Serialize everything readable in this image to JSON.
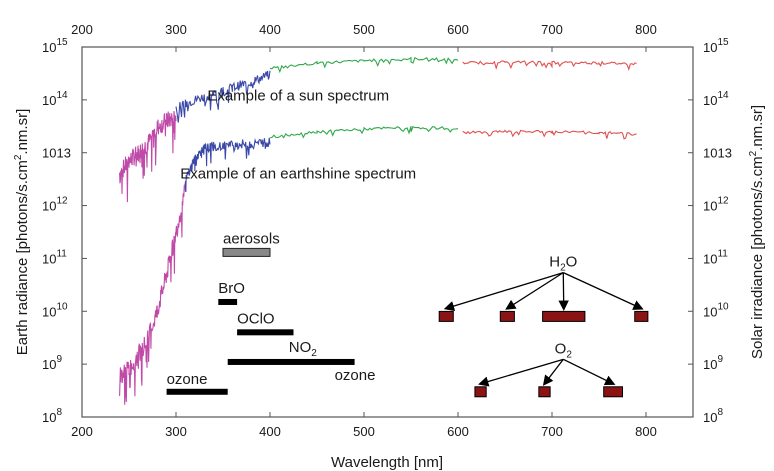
{
  "chart_data": {
    "type": "line",
    "title": "",
    "xlabel": "Wavelength [nm]",
    "ylabel_left": "Earth radiance [photons/s.cm",
    "ylabel_left_sup": "2",
    "ylabel_left_tail": ".nm.sr]",
    "ylabel_right": "Solar irradiance [photons/s.cm",
    "ylabel_right_sup": "2",
    "ylabel_right_tail": ".nm.sr]",
    "xlim": [
      200,
      850
    ],
    "ylim": [
      100000000,
      1000000000000000
    ],
    "yscale": "log",
    "x_ticks": [
      "200",
      "300",
      "400",
      "500",
      "600",
      "700",
      "800"
    ],
    "y_ticks_left": [
      {
        "base": "10",
        "exp": "8"
      },
      {
        "base": "10",
        "exp": "9"
      },
      {
        "base": "10",
        "exp": "10"
      },
      {
        "base": "10",
        "exp": "11"
      },
      {
        "base": "10",
        "exp": "12"
      },
      {
        "base": "1013",
        "exp": ""
      },
      {
        "base": "10",
        "exp": "14"
      },
      {
        "base": "10",
        "exp": "15"
      }
    ],
    "y_ticks_right": [
      {
        "base": "10",
        "exp": "8"
      },
      {
        "base": "10",
        "exp": "9"
      },
      {
        "base": "10",
        "exp": "10"
      },
      {
        "base": "10",
        "exp": "11"
      },
      {
        "base": "10",
        "exp": "12"
      },
      {
        "base": "1013",
        "exp": ""
      },
      {
        "base": "10",
        "exp": "14"
      },
      {
        "base": "10",
        "exp": "15"
      }
    ],
    "series_colors": [
      "#c04aa8",
      "#3a48a8",
      "#2ea84a",
      "#e05050"
    ],
    "series": [
      {
        "segment": "sun",
        "color_index": 0,
        "x": [
          240,
          250,
          260,
          270,
          280,
          290,
          300
        ],
        "y": [
          4000000000000.0,
          7000000000000.0,
          10000000000000.0,
          15000000000000.0,
          30000000000000.0,
          40000000000000.0,
          50000000000000.0
        ]
      },
      {
        "segment": "sun",
        "color_index": 1,
        "x": [
          300,
          320,
          340,
          360,
          380,
          400
        ],
        "y": [
          70000000000000.0,
          100000000000000.0,
          130000000000000.0,
          170000000000000.0,
          220000000000000.0,
          300000000000000.0
        ]
      },
      {
        "segment": "sun",
        "color_index": 2,
        "x": [
          400,
          450,
          500,
          550,
          600
        ],
        "y": [
          400000000000000.0,
          500000000000000.0,
          550000000000000.0,
          600000000000000.0,
          580000000000000.0
        ]
      },
      {
        "segment": "sun",
        "color_index": 3,
        "x": [
          605,
          650,
          700,
          750,
          790
        ],
        "y": [
          500000000000000.0,
          520000000000000.0,
          510000000000000.0,
          500000000000000.0,
          480000000000000.0
        ]
      },
      {
        "segment": "earthshine",
        "color_index": 0,
        "x": [
          240,
          250,
          260,
          270,
          280,
          290,
          300,
          310
        ],
        "y": [
          600000000.0,
          800000000.0,
          1500000000.0,
          3000000000.0,
          10000000000.0,
          50000000000.0,
          300000000000.0,
          2000000000000.0
        ]
      },
      {
        "segment": "earthshine",
        "color_index": 1,
        "x": [
          310,
          320,
          330,
          340,
          360,
          380,
          400
        ],
        "y": [
          3000000000000.0,
          8000000000000.0,
          12000000000000.0,
          13000000000000.0,
          14000000000000.0,
          15000000000000.0,
          16000000000000.0
        ]
      },
      {
        "segment": "earthshine",
        "color_index": 2,
        "x": [
          400,
          450,
          500,
          550,
          600
        ],
        "y": [
          20000000000000.0,
          25000000000000.0,
          28000000000000.0,
          30000000000000.0,
          29000000000000.0
        ]
      },
      {
        "segment": "earthshine",
        "color_index": 3,
        "x": [
          605,
          650,
          700,
          750,
          790
        ],
        "y": [
          24000000000000.0,
          25000000000000.0,
          25000000000000.0,
          24000000000000.0,
          23000000000000.0
        ]
      }
    ],
    "spectrum_labels": [
      "Example of a sun spectrum",
      "Example of an earthshine spectrum"
    ],
    "bands": [
      {
        "label": "aerosols",
        "x0": 350,
        "x1": 400,
        "y": 130000000000.0,
        "style": "gray"
      },
      {
        "label": "BrO",
        "x0": 345,
        "x1": 365,
        "y": 15000000000.0
      },
      {
        "label": "OClO",
        "x0": 365,
        "x1": 425,
        "y": 4000000000.0
      },
      {
        "label": "NO",
        "label_sub": "2",
        "x0": 355,
        "x1": 490,
        "y": 1100000000.0
      },
      {
        "label": "ozone",
        "x0": 290,
        "x1": 355,
        "y": 300000000.0
      },
      {
        "label": "ozone",
        "x0": 355,
        "x1": 490,
        "y": 1100000000.0,
        "label_only": true
      }
    ],
    "absorbers": [
      {
        "label": "H",
        "label_sub": "2",
        "label_tail": "O",
        "boxes": [
          {
            "x0": 580,
            "x1": 595
          },
          {
            "x0": 645,
            "x1": 660
          },
          {
            "x0": 690,
            "x1": 735
          },
          {
            "x0": 788,
            "x1": 802
          }
        ],
        "y": 8000000000.0
      },
      {
        "label": "O",
        "label_sub": "2",
        "label_tail": "",
        "boxes": [
          {
            "x0": 618,
            "x1": 630
          },
          {
            "x0": 686,
            "x1": 698
          },
          {
            "x0": 755,
            "x1": 775
          }
        ],
        "y": 300000000.0
      }
    ],
    "grid": false,
    "legend": "none"
  }
}
